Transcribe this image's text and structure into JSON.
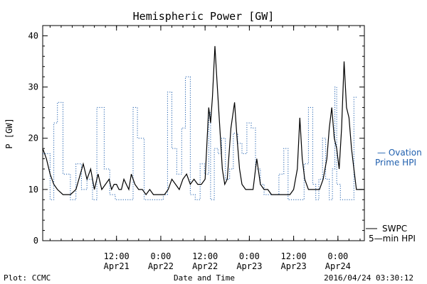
{
  "chart_data": {
    "type": "line",
    "title": "Hemispheric Power [GW]",
    "xlabel": "Date and Time",
    "ylabel": "P [GW]",
    "xlim": [
      "2016-04-20T16:00:00",
      "2016-04-24T07:10:00"
    ],
    "ylim": [
      0,
      42
    ],
    "yticks": [
      0,
      10,
      20,
      30,
      40
    ],
    "grid": false,
    "x_ticks": [
      {
        "time": "2016-04-21T12:00:00",
        "line1": "12:00",
        "line2": "Apr21"
      },
      {
        "time": "2016-04-22T00:00:00",
        "line1": "0:00",
        "line2": "Apr22"
      },
      {
        "time": "2016-04-22T12:00:00",
        "line1": "12:00",
        "line2": "Apr22"
      },
      {
        "time": "2016-04-23T00:00:00",
        "line1": "0:00",
        "line2": "Apr23"
      },
      {
        "time": "2016-04-23T12:00:00",
        "line1": "12:00",
        "line2": "Apr23"
      },
      {
        "time": "2016-04-24T00:00:00",
        "line1": "0:00",
        "line2": "Apr24"
      }
    ],
    "series": [
      {
        "name": "Ovation Prime HPI",
        "color": "#1f5fae",
        "style": "dotted",
        "step": true,
        "x": [
          "2016-04-20T16:00:00",
          "2016-04-20T18:00:00",
          "2016-04-20T19:00:00",
          "2016-04-20T20:00:00",
          "2016-04-20T21:30:00",
          "2016-04-20T23:30:00",
          "2016-04-21T01:00:00",
          "2016-04-21T02:30:00",
          "2016-04-21T04:00:00",
          "2016-04-21T05:30:00",
          "2016-04-21T06:40:00",
          "2016-04-21T07:40:00",
          "2016-04-21T08:40:00",
          "2016-04-21T10:10:00",
          "2016-04-21T11:40:00",
          "2016-04-21T13:10:00",
          "2016-04-21T14:30:00",
          "2016-04-21T15:20:00",
          "2016-04-21T16:30:00",
          "2016-04-21T17:40:00",
          "2016-04-21T19:30:00",
          "2016-04-21T20:30:00",
          "2016-04-21T22:00:00",
          "2016-04-21T23:30:00",
          "2016-04-22T00:40:00",
          "2016-04-22T01:50:00",
          "2016-04-22T03:00:00",
          "2016-04-22T04:20:00",
          "2016-04-22T05:40:00",
          "2016-04-22T06:40:00",
          "2016-04-22T08:00:00",
          "2016-04-22T09:20:00",
          "2016-04-22T10:40:00",
          "2016-04-22T11:50:00",
          "2016-04-22T13:00:00",
          "2016-04-22T13:30:00",
          "2016-04-22T14:30:00",
          "2016-04-22T15:30:00",
          "2016-04-22T16:30:00",
          "2016-04-22T17:30:00",
          "2016-04-22T18:40:00",
          "2016-04-22T19:40:00",
          "2016-04-22T20:50:00",
          "2016-04-22T22:00:00",
          "2016-04-22T23:20:00",
          "2016-04-23T00:30:00",
          "2016-04-23T01:40:00",
          "2016-04-23T03:00:00",
          "2016-04-23T04:00:00",
          "2016-04-23T05:20:00",
          "2016-04-23T06:30:00",
          "2016-04-23T08:00:00",
          "2016-04-23T09:20:00",
          "2016-04-23T10:30:00",
          "2016-04-23T11:30:00",
          "2016-04-23T12:30:00",
          "2016-04-23T13:40:00",
          "2016-04-23T14:50:00",
          "2016-04-23T16:00:00",
          "2016-04-23T17:10:00",
          "2016-04-23T18:00:00",
          "2016-04-23T18:50:00",
          "2016-04-23T19:50:00",
          "2016-04-23T20:40:00",
          "2016-04-23T21:40:00",
          "2016-04-23T22:30:00",
          "2016-04-23T23:10:00",
          "2016-04-23T23:40:00",
          "2016-04-24T00:10:00",
          "2016-04-24T00:40:00",
          "2016-04-24T01:20:00",
          "2016-04-24T02:10:00",
          "2016-04-24T03:00:00",
          "2016-04-24T03:40:00",
          "2016-04-24T04:20:00"
        ],
        "y": [
          17,
          8,
          23,
          27,
          13,
          8,
          15,
          10,
          12,
          8,
          26,
          26,
          14,
          9,
          8,
          8,
          8,
          8,
          26,
          20,
          8,
          8,
          8,
          8,
          9,
          29,
          18,
          13,
          22,
          32,
          9,
          8,
          15,
          13,
          25,
          8,
          18,
          17,
          20,
          12,
          14,
          21,
          19,
          17,
          23,
          22,
          14,
          11,
          9,
          9,
          9,
          13,
          18,
          8,
          8,
          8,
          8,
          15,
          26,
          11,
          8,
          12,
          20,
          12,
          8,
          14,
          30,
          11,
          11,
          8,
          8,
          8,
          8,
          8,
          28
        ]
      },
      {
        "name": "SWPC 5-min HPI",
        "color": "#000000",
        "style": "solid",
        "step": false,
        "x": [
          "2016-04-20T16:00:00",
          "2016-04-20T17:00:00",
          "2016-04-20T18:00:00",
          "2016-04-20T19:00:00",
          "2016-04-20T20:00:00",
          "2016-04-20T21:30:00",
          "2016-04-20T23:30:00",
          "2016-04-21T01:00:00",
          "2016-04-21T03:00:00",
          "2016-04-21T04:00:00",
          "2016-04-21T05:00:00",
          "2016-04-21T06:00:00",
          "2016-04-21T07:00:00",
          "2016-04-21T08:00:00",
          "2016-04-21T09:00:00",
          "2016-04-21T10:00:00",
          "2016-04-21T10:40:00",
          "2016-04-21T11:20:00",
          "2016-04-21T12:00:00",
          "2016-04-21T12:40:00",
          "2016-04-21T13:20:00",
          "2016-04-21T14:00:00",
          "2016-04-21T14:40:00",
          "2016-04-21T15:20:00",
          "2016-04-21T16:00:00",
          "2016-04-21T17:00:00",
          "2016-04-21T18:00:00",
          "2016-04-21T19:00:00",
          "2016-04-21T20:00:00",
          "2016-04-21T21:00:00",
          "2016-04-21T22:00:00",
          "2016-04-21T23:00:00",
          "2016-04-22T00:00:00",
          "2016-04-22T01:00:00",
          "2016-04-22T02:00:00",
          "2016-04-22T03:00:00",
          "2016-04-22T04:00:00",
          "2016-04-22T05:00:00",
          "2016-04-22T06:00:00",
          "2016-04-22T07:00:00",
          "2016-04-22T08:00:00",
          "2016-04-22T09:00:00",
          "2016-04-22T10:00:00",
          "2016-04-22T11:00:00",
          "2016-04-22T12:00:00",
          "2016-04-22T13:00:00",
          "2016-04-22T13:30:00",
          "2016-04-22T14:00:00",
          "2016-04-22T14:40:00",
          "2016-04-22T15:20:00",
          "2016-04-22T16:00:00",
          "2016-04-22T16:40:00",
          "2016-04-22T17:20:00",
          "2016-04-22T18:00:00",
          "2016-04-22T19:00:00",
          "2016-04-22T20:00:00",
          "2016-04-22T20:40:00",
          "2016-04-22T21:20:00",
          "2016-04-22T22:00:00",
          "2016-04-22T23:00:00",
          "2016-04-23T00:00:00",
          "2016-04-23T01:00:00",
          "2016-04-23T02:00:00",
          "2016-04-23T03:00:00",
          "2016-04-23T04:00:00",
          "2016-04-23T05:00:00",
          "2016-04-23T06:00:00",
          "2016-04-23T07:00:00",
          "2016-04-23T08:00:00",
          "2016-04-23T09:00:00",
          "2016-04-23T10:00:00",
          "2016-04-23T11:00:00",
          "2016-04-23T12:00:00",
          "2016-04-23T13:00:00",
          "2016-04-23T13:40:00",
          "2016-04-23T14:20:00",
          "2016-04-23T15:00:00",
          "2016-04-23T16:00:00",
          "2016-04-23T17:00:00",
          "2016-04-23T18:00:00",
          "2016-04-23T19:00:00",
          "2016-04-23T20:00:00",
          "2016-04-23T21:00:00",
          "2016-04-23T21:40:00",
          "2016-04-23T22:20:00",
          "2016-04-23T23:00:00",
          "2016-04-23T23:40:00",
          "2016-04-24T00:20:00",
          "2016-04-24T01:00:00",
          "2016-04-24T01:40:00",
          "2016-04-24T02:20:00",
          "2016-04-24T03:00:00",
          "2016-04-24T03:40:00",
          "2016-04-24T04:20:00",
          "2016-04-24T05:00:00",
          "2016-04-24T05:40:00",
          "2016-04-24T06:20:00",
          "2016-04-24T07:00:00"
        ],
        "y": [
          18,
          16,
          13,
          11,
          10,
          9,
          9,
          10,
          15,
          12,
          14,
          10,
          13,
          10,
          11,
          12,
          10,
          11,
          11,
          10,
          10,
          12,
          11,
          10,
          13,
          11,
          10,
          10,
          9,
          10,
          9,
          9,
          9,
          9,
          10,
          12,
          11,
          10,
          12,
          13,
          11,
          12,
          11,
          11,
          12,
          26,
          23,
          28,
          38,
          30,
          22,
          14,
          11,
          12,
          22,
          27,
          20,
          14,
          11,
          10,
          10,
          10,
          16,
          11,
          10,
          10,
          9,
          9,
          9,
          9,
          9,
          9,
          10,
          14,
          24,
          16,
          12,
          10,
          10,
          10,
          10,
          12,
          16,
          22,
          26,
          20,
          18,
          14,
          22,
          35,
          26,
          24,
          18,
          14,
          10,
          10,
          10,
          10
        ]
      }
    ]
  },
  "legend": {
    "ovation_line1": "— Ovation",
    "ovation_line2": "Prime HPI",
    "swpc_line1": "SWPC",
    "swpc_line2": "5—min HPI"
  },
  "footer": {
    "plot_credit": "Plot: CCMC",
    "timestamp": "2016/04/24 03:30:12"
  }
}
